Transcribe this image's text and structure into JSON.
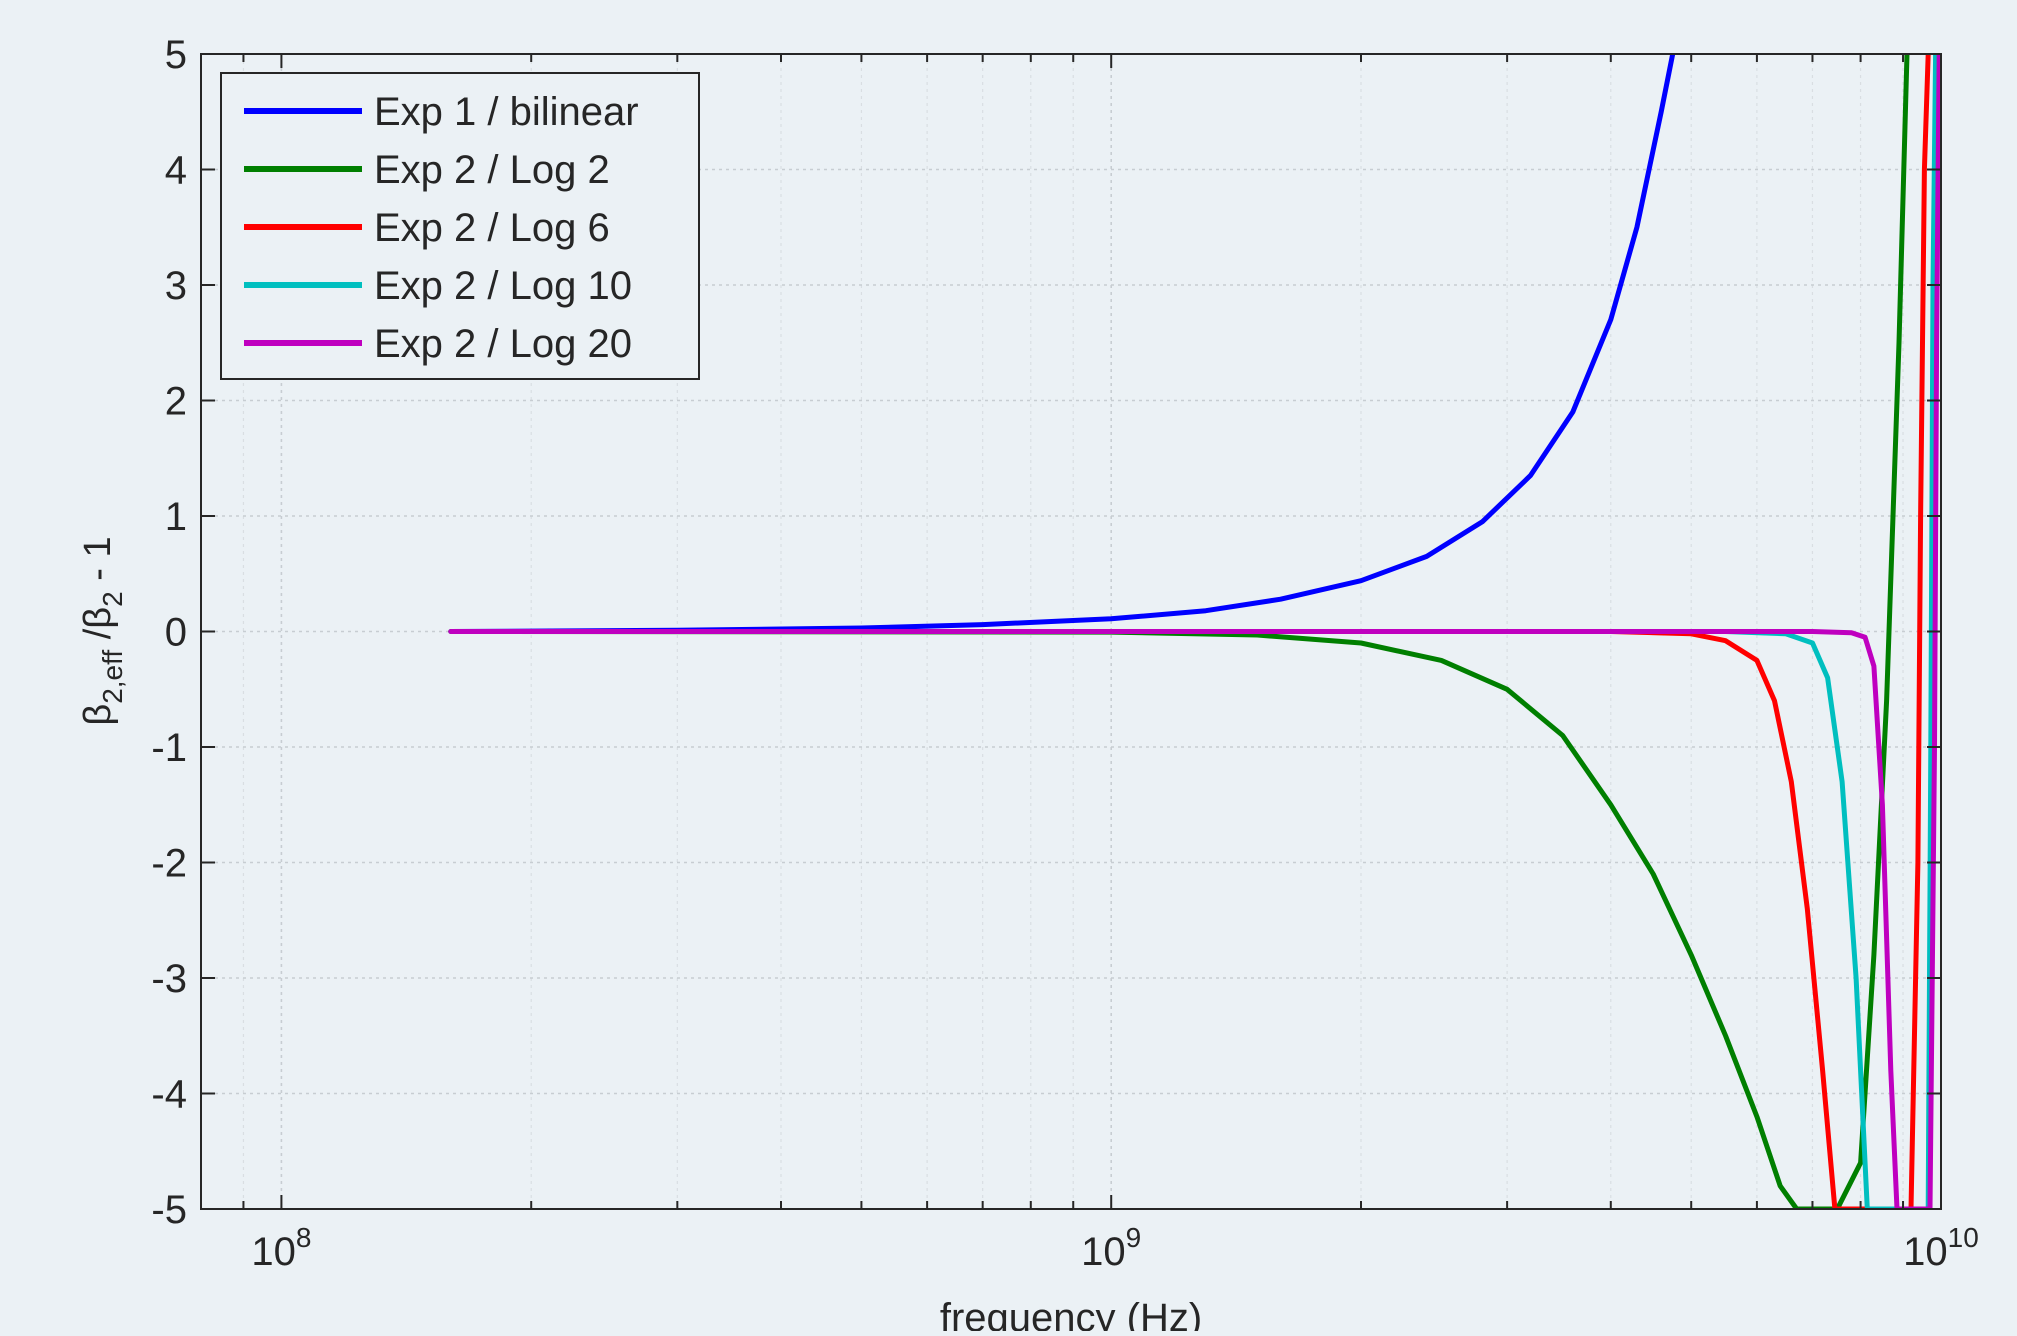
{
  "chart_data": {
    "type": "line",
    "title": "",
    "xlabel": "frequency (Hz)",
    "ylabel": {
      "base": "β",
      "sub1": "2,eff",
      "mid": " /β",
      "sub2": "2",
      "tail": " - 1"
    },
    "x_scale": "log",
    "xlim": [
      80000000,
      10000000000
    ],
    "ylim": [
      -5,
      5
    ],
    "grid": true,
    "legend_position": "top-left",
    "x_ticks": [
      {
        "value": 100000000,
        "base": "10",
        "exp": "8"
      },
      {
        "value": 1000000000,
        "base": "10",
        "exp": "9"
      },
      {
        "value": 10000000000,
        "base": "10",
        "exp": "10"
      }
    ],
    "y_ticks": [
      5,
      4,
      3,
      2,
      1,
      0,
      -1,
      -2,
      -3,
      -4,
      -5
    ],
    "series": [
      {
        "name": "Exp 1 / bilinear",
        "color": "#0000ff",
        "x": [
          160000000,
          300000000,
          500000000,
          700000000,
          1000000000,
          1300000000,
          1600000000,
          2000000000,
          2400000000,
          2800000000,
          3200000000,
          3600000000,
          4000000000,
          4300000000,
          4600000000,
          4750000000
        ],
        "y": [
          0.0,
          0.01,
          0.03,
          0.06,
          0.11,
          0.18,
          0.28,
          0.44,
          0.65,
          0.95,
          1.35,
          1.9,
          2.7,
          3.5,
          4.5,
          5.0
        ]
      },
      {
        "name": "Exp 2 / Log 2",
        "color": "#007f00",
        "x": [
          160000000,
          1000000000,
          1500000000,
          2000000000,
          2500000000,
          3000000000,
          3500000000,
          4000000000,
          4500000000,
          5000000000,
          5500000000,
          6000000000,
          6400000000,
          6700000000,
          7000000000,
          7500000000,
          8000000000,
          8300000000,
          8600000000,
          8900000000,
          9100000000
        ],
        "y": [
          0.0,
          -0.005,
          -0.03,
          -0.1,
          -0.25,
          -0.5,
          -0.9,
          -1.5,
          -2.1,
          -2.8,
          -3.5,
          -4.2,
          -4.8,
          -5.0,
          -5.0,
          -5.0,
          -4.6,
          -2.8,
          -0.6,
          2.5,
          5.0
        ]
      },
      {
        "name": "Exp 2 / Log 6",
        "color": "#ff0000",
        "x": [
          160000000,
          4000000000,
          5000000000,
          5500000000,
          6000000000,
          6300000000,
          6600000000,
          6900000000,
          7200000000,
          7450000000,
          7700000000,
          8500000000,
          9200000000,
          9380000000,
          9450000000,
          9550000000,
          9650000000
        ],
        "y": [
          0.0,
          0.0,
          -0.02,
          -0.08,
          -0.25,
          -0.6,
          -1.3,
          -2.4,
          -3.8,
          -5.0,
          -5.0,
          -5.0,
          -5.0,
          -2.0,
          1.0,
          4.0,
          5.0
        ]
      },
      {
        "name": "Exp 2 / Log 10",
        "color": "#00bfbf",
        "x": [
          160000000,
          5500000000,
          6500000000,
          7000000000,
          7300000000,
          7600000000,
          7900000000,
          8150000000,
          8500000000,
          9300000000,
          9650000000,
          9720000000,
          9780000000,
          9850000000
        ],
        "y": [
          0.0,
          0.0,
          -0.02,
          -0.1,
          -0.4,
          -1.3,
          -3.0,
          -5.0,
          -5.0,
          -5.0,
          -5.0,
          -1.0,
          3.0,
          5.0
        ]
      },
      {
        "name": "Exp 2 / Log 20",
        "color": "#bf00bf",
        "x": [
          160000000,
          7000000000,
          7800000000,
          8100000000,
          8300000000,
          8500000000,
          8700000000,
          8850000000,
          9200000000,
          9700000000,
          9820000000,
          9880000000,
          9950000000
        ],
        "y": [
          0.0,
          0.0,
          -0.01,
          -0.05,
          -0.3,
          -1.5,
          -3.8,
          -5.0,
          -5.0,
          -5.0,
          -1.0,
          2.5,
          5.0
        ]
      }
    ]
  }
}
